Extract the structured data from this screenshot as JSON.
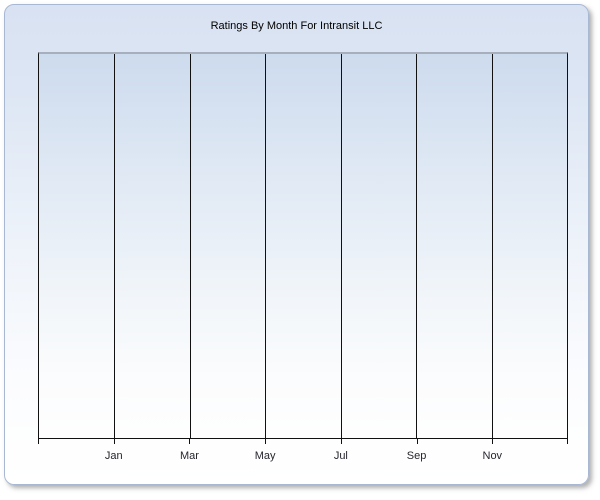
{
  "panel": {
    "colors": {
      "frame_border": "#a9b8d2",
      "frame_background_top": "#d8e2f2",
      "frame_background_bottom": "#ffffff",
      "plot_top_border": "#a7aebc",
      "plot_background_top": "#cddbee",
      "plot_background_bottom": "#fefefe",
      "gridline": "#111111",
      "axis": "#111111",
      "label_text": "#26262e",
      "title_text": "#000000"
    }
  },
  "chart_data": {
    "type": "bar",
    "title": "Ratings By Month For Intransit LLC",
    "categories": [
      "Jan",
      "Mar",
      "May",
      "Jul",
      "Sep",
      "Nov"
    ],
    "series": [],
    "values": [],
    "xlabel": "",
    "ylabel": "",
    "y_axis_labels": "none",
    "legend_position": "none",
    "grid": "vertical gridlines only; plot area rendered empty (no data points)",
    "x_intervals": 7
  }
}
